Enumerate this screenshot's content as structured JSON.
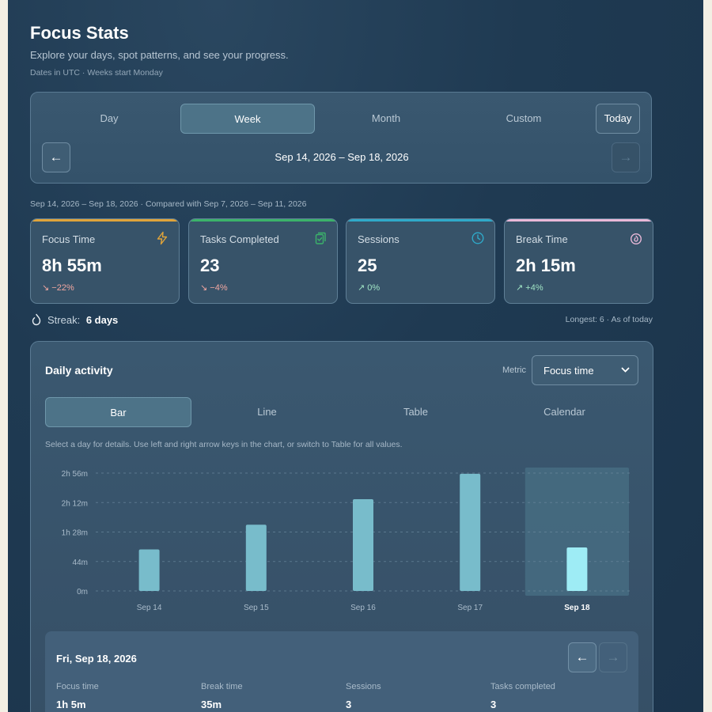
{
  "header": {
    "title": "Focus Stats",
    "subtitle": "Explore your days, spot patterns, and see your progress.",
    "note": "Dates in UTC · Weeks start Monday"
  },
  "range": {
    "tabs": [
      "Day",
      "Week",
      "Month",
      "Custom"
    ],
    "active_tab": "Week",
    "today_label": "Today",
    "prev_label": "←",
    "next_label": "→",
    "range_label": "Sep 14, 2026 – Sep 18, 2026"
  },
  "comparison_text": "Sep 14, 2026 – Sep 18, 2026 · Compared with Sep 7, 2026 – Sep 11, 2026",
  "stats": [
    {
      "label": "Focus Time",
      "value": "8h 55m",
      "delta": "−22%",
      "direction": "down",
      "accent": "#e0a43a",
      "icon": "bolt-icon"
    },
    {
      "label": "Tasks Completed",
      "value": "23",
      "delta": "−4%",
      "direction": "down",
      "accent": "#3bb36a",
      "icon": "clipboard-check-icon"
    },
    {
      "label": "Sessions",
      "value": "25",
      "delta": "0%",
      "direction": "up",
      "accent": "#2fa9c9",
      "icon": "clock-icon"
    },
    {
      "label": "Break Time",
      "value": "2h 15m",
      "delta": "+4%",
      "direction": "up",
      "accent": "#e9b8d8",
      "icon": "flame-icon"
    }
  ],
  "streak": {
    "label": "Streak:",
    "value": "6 days",
    "note": "Longest: 6 · As of today"
  },
  "activity": {
    "title": "Daily activity",
    "metric_label": "Metric",
    "metric_value": "Focus time",
    "view_tabs": [
      "Bar",
      "Line",
      "Table",
      "Calendar"
    ],
    "active_view": "Bar",
    "hint": "Select a day for details. Use left and right arrow keys in the chart, or switch to Table for all values."
  },
  "chart_data": {
    "type": "bar",
    "categories": [
      "Sep 14",
      "Sep 15",
      "Sep 16",
      "Sep 17",
      "Sep 18"
    ],
    "values": [
      62,
      99,
      137,
      175,
      65
    ],
    "unit": "minutes",
    "y_ticks": [
      0,
      44,
      88,
      132,
      176
    ],
    "y_tick_labels": [
      "0m",
      "44m",
      "1h 28m",
      "2h 12m",
      "2h 56m"
    ],
    "ylim": [
      0,
      176
    ],
    "selected": "Sep 18",
    "colors": {
      "bar": "#78bccb",
      "selected_bar": "#9eecf5"
    }
  },
  "detail": {
    "date": "Fri, Sep 18, 2026",
    "prev_label": "←",
    "next_label": "→",
    "fields": [
      {
        "label": "Focus time",
        "value": "1h 5m"
      },
      {
        "label": "Break time",
        "value": "35m"
      },
      {
        "label": "Sessions",
        "value": "3"
      },
      {
        "label": "Tasks completed",
        "value": "3"
      }
    ]
  }
}
